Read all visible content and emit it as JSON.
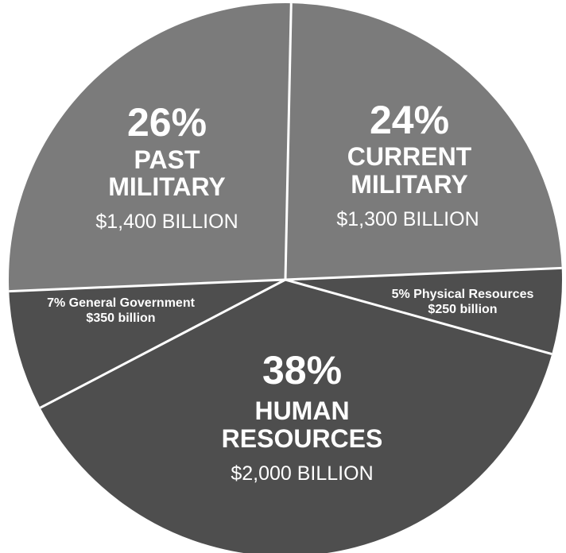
{
  "chart_data": {
    "type": "pie",
    "unit": "billion USD",
    "slices": [
      {
        "key": "current-military",
        "percent": 24,
        "value": 1300,
        "percent_label": "24%",
        "name_lines": [
          "CURRENT",
          "MILITARY"
        ],
        "amount_label": "$1,300 BILLION",
        "color": "#7b7b7b"
      },
      {
        "key": "physical-resources",
        "percent": 5,
        "value": 250,
        "line1": "5% Physical  Resources",
        "line2": "$250 billion",
        "color": "#4e4e4e"
      },
      {
        "key": "human-resources",
        "percent": 38,
        "value": 2000,
        "percent_label": "38%",
        "name_lines": [
          "HUMAN",
          "RESOURCES"
        ],
        "amount_label": "$2,000 BILLION",
        "color": "#4e4e4e"
      },
      {
        "key": "general-government",
        "percent": 7,
        "value": 350,
        "line1": "7% General Government",
        "line2": "$350 billion",
        "color": "#4e4e4e"
      },
      {
        "key": "past-military",
        "percent": 26,
        "value": 1400,
        "percent_label": "26%",
        "name_lines": [
          "PAST",
          "MILITARY"
        ],
        "amount_label": "$1,400 BILLION",
        "color": "#7b7b7b"
      }
    ],
    "separator_color": "#ffffff"
  }
}
